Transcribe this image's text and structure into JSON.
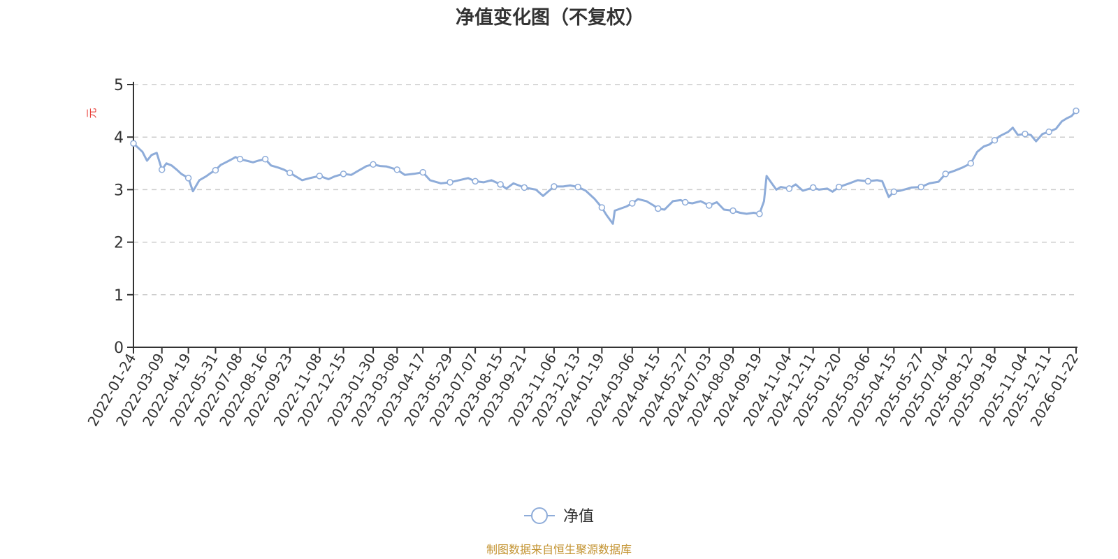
{
  "chart_data": {
    "type": "line",
    "title": "净值变化图（不复权）",
    "ylabel": "元",
    "ylim": [
      0,
      5
    ],
    "yticks": [
      "0",
      "1",
      "2",
      "3",
      "4",
      "5"
    ],
    "grid": "horizontal dashed",
    "legend_position": "bottom-center",
    "line_color": "#8eacd9",
    "xticks": [
      "2022-01-24",
      "2022-03-09",
      "2022-04-19",
      "2022-05-31",
      "2022-07-08",
      "2022-08-16",
      "2022-09-23",
      "2022-11-08",
      "2022-12-15",
      "2023-01-30",
      "2023-03-08",
      "2023-04-17",
      "2023-05-29",
      "2023-07-07",
      "2023-08-15",
      "2023-09-21",
      "2023-11-06",
      "2023-12-13",
      "2024-01-19",
      "2024-03-06",
      "2024-04-15",
      "2024-05-27",
      "2024-07-03",
      "2024-08-09",
      "2024-09-19",
      "2024-11-04",
      "2024-12-11",
      "2025-01-20",
      "2025-03-06",
      "2025-04-15",
      "2025-05-27",
      "2025-07-04",
      "2025-08-12",
      "2025-09-18",
      "2025-11-04",
      "2025-12-11",
      "2026-01-22"
    ],
    "series": [
      {
        "name": "净值",
        "points": [
          [
            "2022-01-24",
            3.88
          ],
          [
            "2022-02-07",
            3.72
          ],
          [
            "2022-02-14",
            3.55
          ],
          [
            "2022-02-21",
            3.66
          ],
          [
            "2022-03-01",
            3.7
          ],
          [
            "2022-03-09",
            3.38
          ],
          [
            "2022-03-16",
            3.5
          ],
          [
            "2022-03-24",
            3.46
          ],
          [
            "2022-04-01",
            3.38
          ],
          [
            "2022-04-08",
            3.3
          ],
          [
            "2022-04-19",
            3.22
          ],
          [
            "2022-04-26",
            2.97
          ],
          [
            "2022-05-06",
            3.18
          ],
          [
            "2022-05-16",
            3.25
          ],
          [
            "2022-05-24",
            3.32
          ],
          [
            "2022-05-31",
            3.37
          ],
          [
            "2022-06-08",
            3.47
          ],
          [
            "2022-06-16",
            3.52
          ],
          [
            "2022-06-24",
            3.57
          ],
          [
            "2022-07-01",
            3.62
          ],
          [
            "2022-07-08",
            3.58
          ],
          [
            "2022-07-18",
            3.55
          ],
          [
            "2022-07-28",
            3.52
          ],
          [
            "2022-08-05",
            3.55
          ],
          [
            "2022-08-16",
            3.58
          ],
          [
            "2022-08-25",
            3.46
          ],
          [
            "2022-09-05",
            3.42
          ],
          [
            "2022-09-14",
            3.38
          ],
          [
            "2022-09-23",
            3.32
          ],
          [
            "2022-10-12",
            3.18
          ],
          [
            "2022-10-24",
            3.22
          ],
          [
            "2022-11-08",
            3.26
          ],
          [
            "2022-11-22",
            3.2
          ],
          [
            "2022-12-01",
            3.25
          ],
          [
            "2022-12-15",
            3.3
          ],
          [
            "2022-12-27",
            3.28
          ],
          [
            "2023-01-10",
            3.38
          ],
          [
            "2023-01-20",
            3.45
          ],
          [
            "2023-01-30",
            3.48
          ],
          [
            "2023-02-10",
            3.45
          ],
          [
            "2023-02-20",
            3.44
          ],
          [
            "2023-03-08",
            3.38
          ],
          [
            "2023-03-20",
            3.28
          ],
          [
            "2023-04-03",
            3.3
          ],
          [
            "2023-04-17",
            3.33
          ],
          [
            "2023-04-28",
            3.18
          ],
          [
            "2023-05-15",
            3.12
          ],
          [
            "2023-05-29",
            3.14
          ],
          [
            "2023-06-12",
            3.18
          ],
          [
            "2023-06-26",
            3.22
          ],
          [
            "2023-07-07",
            3.16
          ],
          [
            "2023-07-20",
            3.14
          ],
          [
            "2023-08-01",
            3.18
          ],
          [
            "2023-08-15",
            3.1
          ],
          [
            "2023-08-24",
            3.02
          ],
          [
            "2023-09-04",
            3.12
          ],
          [
            "2023-09-21",
            3.04
          ],
          [
            "2023-10-09",
            3.0
          ],
          [
            "2023-10-20",
            2.88
          ],
          [
            "2023-11-06",
            3.06
          ],
          [
            "2023-11-20",
            3.06
          ],
          [
            "2023-12-01",
            3.08
          ],
          [
            "2023-12-13",
            3.05
          ],
          [
            "2023-12-25",
            2.98
          ],
          [
            "2024-01-08",
            2.82
          ],
          [
            "2024-01-19",
            2.66
          ],
          [
            "2024-01-26",
            2.52
          ],
          [
            "2024-02-05",
            2.35
          ],
          [
            "2024-02-08",
            2.6
          ],
          [
            "2024-02-26",
            2.68
          ],
          [
            "2024-03-06",
            2.74
          ],
          [
            "2024-03-15",
            2.82
          ],
          [
            "2024-03-28",
            2.78
          ],
          [
            "2024-04-08",
            2.7
          ],
          [
            "2024-04-15",
            2.64
          ],
          [
            "2024-04-25",
            2.62
          ],
          [
            "2024-05-08",
            2.78
          ],
          [
            "2024-05-20",
            2.8
          ],
          [
            "2024-05-27",
            2.76
          ],
          [
            "2024-06-07",
            2.74
          ],
          [
            "2024-06-20",
            2.78
          ],
          [
            "2024-07-03",
            2.7
          ],
          [
            "2024-07-15",
            2.76
          ],
          [
            "2024-07-26",
            2.62
          ],
          [
            "2024-08-09",
            2.6
          ],
          [
            "2024-08-20",
            2.56
          ],
          [
            "2024-08-30",
            2.54
          ],
          [
            "2024-09-10",
            2.56
          ],
          [
            "2024-09-19",
            2.54
          ],
          [
            "2024-09-26",
            2.78
          ],
          [
            "2024-09-30",
            3.26
          ],
          [
            "2024-10-08",
            3.12
          ],
          [
            "2024-10-15",
            3.0
          ],
          [
            "2024-10-22",
            3.05
          ],
          [
            "2024-11-04",
            3.02
          ],
          [
            "2024-11-14",
            3.1
          ],
          [
            "2024-11-25",
            2.98
          ],
          [
            "2024-12-11",
            3.04
          ],
          [
            "2024-12-20",
            3.0
          ],
          [
            "2025-01-02",
            3.02
          ],
          [
            "2025-01-10",
            2.96
          ],
          [
            "2025-01-20",
            3.05
          ],
          [
            "2025-02-05",
            3.12
          ],
          [
            "2025-02-18",
            3.18
          ],
          [
            "2025-03-06",
            3.16
          ],
          [
            "2025-03-20",
            3.18
          ],
          [
            "2025-03-28",
            3.16
          ],
          [
            "2025-04-07",
            2.86
          ],
          [
            "2025-04-15",
            2.96
          ],
          [
            "2025-04-25",
            2.98
          ],
          [
            "2025-05-12",
            3.04
          ],
          [
            "2025-05-27",
            3.05
          ],
          [
            "2025-06-09",
            3.12
          ],
          [
            "2025-06-23",
            3.15
          ],
          [
            "2025-07-04",
            3.3
          ],
          [
            "2025-07-18",
            3.36
          ],
          [
            "2025-07-30",
            3.42
          ],
          [
            "2025-08-12",
            3.5
          ],
          [
            "2025-08-22",
            3.72
          ],
          [
            "2025-09-01",
            3.82
          ],
          [
            "2025-09-10",
            3.86
          ],
          [
            "2025-09-18",
            3.94
          ],
          [
            "2025-09-26",
            4.02
          ],
          [
            "2025-10-09",
            4.1
          ],
          [
            "2025-10-16",
            4.18
          ],
          [
            "2025-10-24",
            4.04
          ],
          [
            "2025-11-04",
            4.06
          ],
          [
            "2025-11-13",
            4.04
          ],
          [
            "2025-11-21",
            3.92
          ],
          [
            "2025-12-01",
            4.06
          ],
          [
            "2025-12-11",
            4.1
          ],
          [
            "2025-12-22",
            4.16
          ],
          [
            "2025-12-31",
            4.3
          ],
          [
            "2026-01-08",
            4.36
          ],
          [
            "2026-01-15",
            4.4
          ],
          [
            "2026-01-22",
            4.5
          ]
        ],
        "markers": [
          [
            "2022-01-24",
            3.88
          ],
          [
            "2022-03-09",
            3.38
          ],
          [
            "2022-04-19",
            3.22
          ],
          [
            "2022-05-31",
            3.37
          ],
          [
            "2022-07-08",
            3.58
          ],
          [
            "2022-08-16",
            3.58
          ],
          [
            "2022-09-23",
            3.32
          ],
          [
            "2022-11-08",
            3.26
          ],
          [
            "2022-12-15",
            3.3
          ],
          [
            "2023-01-30",
            3.48
          ],
          [
            "2023-03-08",
            3.38
          ],
          [
            "2023-04-17",
            3.33
          ],
          [
            "2023-05-29",
            3.14
          ],
          [
            "2023-07-07",
            3.16
          ],
          [
            "2023-08-15",
            3.1
          ],
          [
            "2023-09-21",
            3.04
          ],
          [
            "2023-11-06",
            3.06
          ],
          [
            "2023-12-13",
            3.05
          ],
          [
            "2024-01-19",
            2.66
          ],
          [
            "2024-03-06",
            2.74
          ],
          [
            "2024-04-15",
            2.64
          ],
          [
            "2024-05-27",
            2.76
          ],
          [
            "2024-07-03",
            2.7
          ],
          [
            "2024-08-09",
            2.6
          ],
          [
            "2024-09-19",
            2.54
          ],
          [
            "2024-11-04",
            3.02
          ],
          [
            "2024-12-11",
            3.04
          ],
          [
            "2025-01-20",
            3.05
          ],
          [
            "2025-03-06",
            3.16
          ],
          [
            "2025-04-15",
            2.96
          ],
          [
            "2025-05-27",
            3.05
          ],
          [
            "2025-07-04",
            3.3
          ],
          [
            "2025-08-12",
            3.5
          ],
          [
            "2025-09-18",
            3.94
          ],
          [
            "2025-11-04",
            4.06
          ],
          [
            "2025-12-11",
            4.1
          ],
          [
            "2026-01-22",
            4.5
          ]
        ]
      }
    ]
  },
  "legend": {
    "label": "净值"
  },
  "source_note": "制图数据来自恒生聚源数据库"
}
